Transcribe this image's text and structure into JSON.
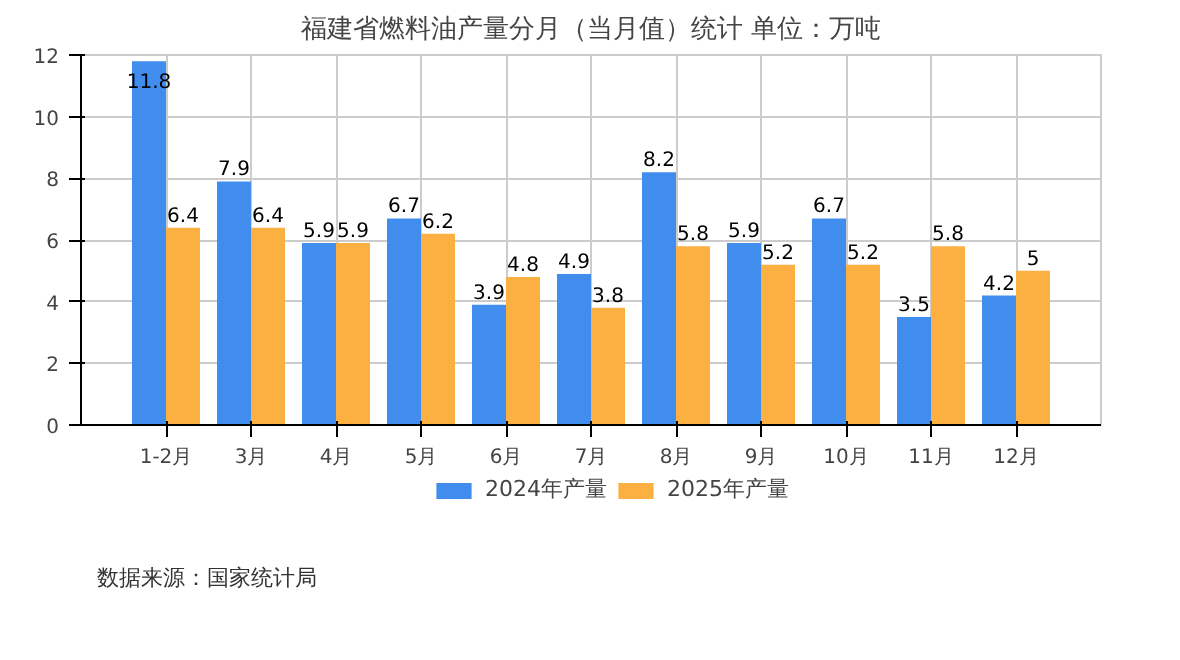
{
  "chart_data": {
    "type": "bar",
    "title": "福建省燃料油产量分月（当月值）统计 单位：万吨",
    "categories": [
      "1-2月",
      "3月",
      "4月",
      "5月",
      "6月",
      "7月",
      "8月",
      "9月",
      "10月",
      "11月",
      "12月"
    ],
    "series": [
      {
        "name": "2024年产量",
        "color": "#418ded",
        "values": [
          11.8,
          7.9,
          5.9,
          6.7,
          3.9,
          4.9,
          8.2,
          5.9,
          6.7,
          3.5,
          4.2
        ]
      },
      {
        "name": "2025年产量",
        "color": "#fbb041",
        "values": [
          6.4,
          6.4,
          5.9,
          6.2,
          4.8,
          3.8,
          5.8,
          5.2,
          5.2,
          5.8,
          5
        ]
      }
    ],
    "ylim": [
      0,
      12
    ],
    "yticks": [
      0,
      2,
      4,
      6,
      8,
      10,
      12
    ],
    "grid": true,
    "legend": "bottom",
    "data_labels": true,
    "annotations": [
      "数据来源：国家统计局"
    ]
  }
}
